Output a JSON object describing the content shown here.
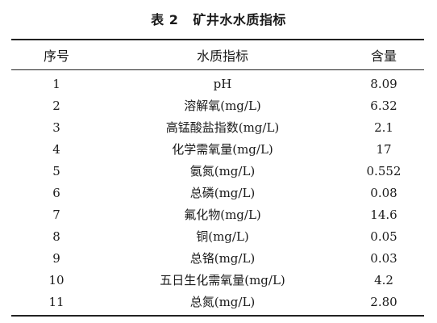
{
  "caption": {
    "number": "表 2",
    "title": "矿井水水质指标"
  },
  "table": {
    "headers": [
      "序号",
      "水质指标",
      "含量"
    ],
    "rows": [
      {
        "index": "1",
        "indicator": "pH",
        "value": "8.09"
      },
      {
        "index": "2",
        "indicator": "溶解氧(mg/L)",
        "value": "6.32"
      },
      {
        "index": "3",
        "indicator": "高锰酸盐指数(mg/L)",
        "value": "2.1"
      },
      {
        "index": "4",
        "indicator": "化学需氧量(mg/L)",
        "value": "17"
      },
      {
        "index": "5",
        "indicator": "氨氮(mg/L)",
        "value": "0.552"
      },
      {
        "index": "6",
        "indicator": "总磷(mg/L)",
        "value": "0.08"
      },
      {
        "index": "7",
        "indicator": "氟化物(mg/L)",
        "value": "14.6"
      },
      {
        "index": "8",
        "indicator": "铜(mg/L)",
        "value": "0.05"
      },
      {
        "index": "9",
        "indicator": "总铬(mg/L)",
        "value": "0.03"
      },
      {
        "index": "10",
        "indicator": "五日生化需氧量(mg/L)",
        "value": "4.2"
      },
      {
        "index": "11",
        "indicator": "总氮(mg/L)",
        "value": "2.80"
      }
    ]
  }
}
